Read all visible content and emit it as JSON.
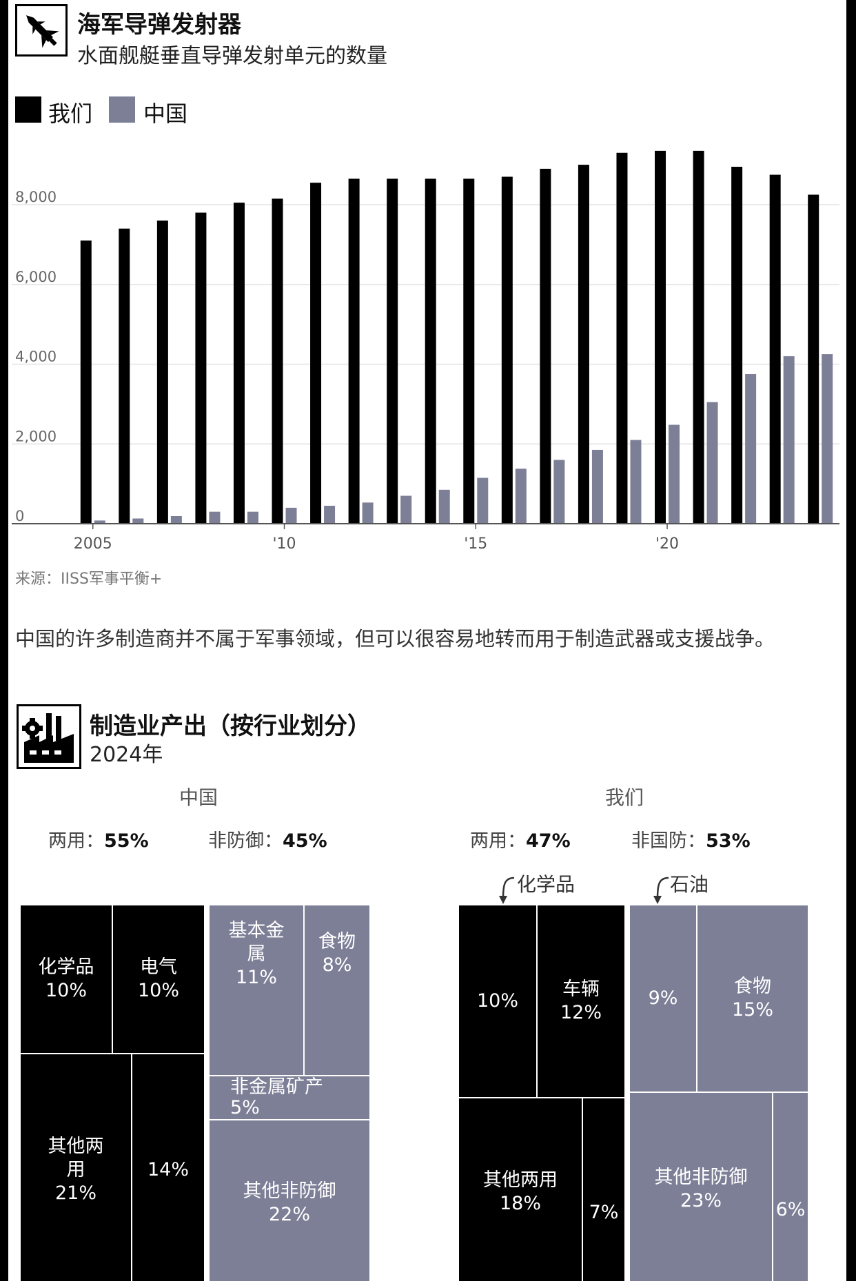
{
  "chart1": {
    "title": "海军导弹发射器",
    "subtitle": "水面舰艇垂直导弹发射单元的数量",
    "icon": "missile-icon",
    "source": "来源：IISS军事平衡+"
  },
  "chart_data": [
    {
      "type": "bar",
      "title": "海军导弹发射器",
      "subtitle": "水面舰艇垂直导弹发射单元的数量",
      "x": [
        2005,
        2006,
        2007,
        2008,
        2009,
        2010,
        2011,
        2012,
        2013,
        2014,
        2015,
        2016,
        2017,
        2018,
        2019,
        2020,
        2021,
        2022,
        2023,
        2024
      ],
      "x_tick_values": [
        2005,
        2010,
        2015,
        2020
      ],
      "x_tick_labels": [
        "2005",
        "'10",
        "'15",
        "'20"
      ],
      "ylim": [
        0,
        9500
      ],
      "y_ticks": [
        0,
        2000,
        4000,
        6000,
        8000
      ],
      "y_tick_labels": [
        "0",
        "2,000",
        "4,000",
        "6,000",
        "8,000"
      ],
      "grid": true,
      "legend_position": "top-left",
      "series": [
        {
          "name": "我们",
          "color": "#000000",
          "values": [
            7100,
            7400,
            7600,
            7800,
            8050,
            8150,
            8550,
            8650,
            8650,
            8650,
            8650,
            8700,
            8900,
            9000,
            9300,
            9350,
            9350,
            8950,
            8750,
            8250
          ]
        },
        {
          "name": "中国",
          "color": "#7d7f97",
          "values": [
            80,
            130,
            190,
            300,
            300,
            400,
            450,
            530,
            700,
            850,
            1150,
            1380,
            1600,
            1850,
            2100,
            2480,
            3050,
            3750,
            4200,
            4250
          ]
        }
      ]
    },
    {
      "type": "treemap",
      "title": "制造业产出（按行业划分）",
      "subtitle": "2024年",
      "panels": [
        {
          "name": "中国",
          "dual_label": "两用：",
          "dual_value": "55%",
          "non_label": "非防御：",
          "non_value": "45%",
          "cells": [
            {
              "label": "化学品",
              "value": 10,
              "text": "10%",
              "group": "dual"
            },
            {
              "label": "电气",
              "value": 10,
              "text": "10%",
              "group": "dual"
            },
            {
              "label": "其他两用",
              "value": 21,
              "text": "21%",
              "group": "dual"
            },
            {
              "label": "",
              "value": 14,
              "text": "14%",
              "group": "dual"
            },
            {
              "label": "基本金属",
              "value": 11,
              "text": "11%",
              "group": "non"
            },
            {
              "label": "食物",
              "value": 8,
              "text": "8%",
              "group": "non"
            },
            {
              "label": "非金属矿产",
              "value": 5,
              "text": "5%",
              "group": "non"
            },
            {
              "label": "其他非防御",
              "value": 22,
              "text": "22%",
              "group": "non"
            }
          ]
        },
        {
          "name": "我们",
          "dual_label": "两用：",
          "dual_value": "47%",
          "non_label": "非国防：",
          "non_value": "53%",
          "annotations": [
            "化学品",
            "石油"
          ],
          "cells": [
            {
              "label": "",
              "value": 10,
              "text": "10%",
              "group": "dual"
            },
            {
              "label": "车辆",
              "value": 12,
              "text": "12%",
              "group": "dual"
            },
            {
              "label": "其他两用",
              "value": 18,
              "text": "18%",
              "group": "dual"
            },
            {
              "label": "",
              "value": 7,
              "text": "7%",
              "group": "dual"
            },
            {
              "label": "",
              "value": 9,
              "text": "9%",
              "group": "non"
            },
            {
              "label": "食物",
              "value": 15,
              "text": "15%",
              "group": "non"
            },
            {
              "label": "其他非防御",
              "value": 23,
              "text": "23%",
              "group": "non"
            },
            {
              "label": "",
              "value": 6,
              "text": "6%",
              "group": "non"
            }
          ]
        }
      ]
    }
  ],
  "prose": "中国的许多制造商并不属于军事领域，但可以很容易地转而用于制造武器或支援战争。",
  "chart2": {
    "title": "制造业产出（按行业划分）",
    "subtitle": "2024年",
    "icon": "factory-icon"
  },
  "colors": {
    "dual": "#000000",
    "non_defense": "#7d7f97"
  }
}
